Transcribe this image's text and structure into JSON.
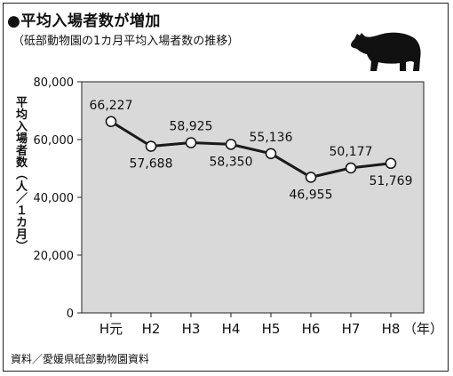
{
  "header": {
    "title": "●平均入場者数が増加",
    "subtitle": "（砥部動物園の1カ月平均入場者数の推移）"
  },
  "footer": {
    "source": "資料／愛媛県砥部動物園資料"
  },
  "colors": {
    "plot_bg": "#d9d9d9",
    "line": "#1a1a1a",
    "marker_fill": "#ffffff",
    "frame": "#222222"
  },
  "icons": {
    "bear": "bear-silhouette-icon"
  },
  "chart_data": {
    "type": "line",
    "categories": [
      "H元",
      "H2",
      "H3",
      "H4",
      "H5",
      "H6",
      "H7",
      "H8"
    ],
    "x_unit_label": "（年）",
    "values": [
      66227,
      57688,
      58925,
      58350,
      55136,
      46955,
      50177,
      51769
    ],
    "value_labels": [
      "66,227",
      "57,688",
      "58,925",
      "58,350",
      "55,136",
      "46,955",
      "50,177",
      "51,769"
    ],
    "ylabel": "平均入場者数（人／１カ月）",
    "ylim": [
      0,
      80000
    ],
    "yticks": [
      0,
      20000,
      40000,
      60000,
      80000
    ],
    "ytick_labels": [
      "0",
      "20,000",
      "40,000",
      "60,000",
      "80,000"
    ],
    "grid": false,
    "markers": "open-circle"
  }
}
